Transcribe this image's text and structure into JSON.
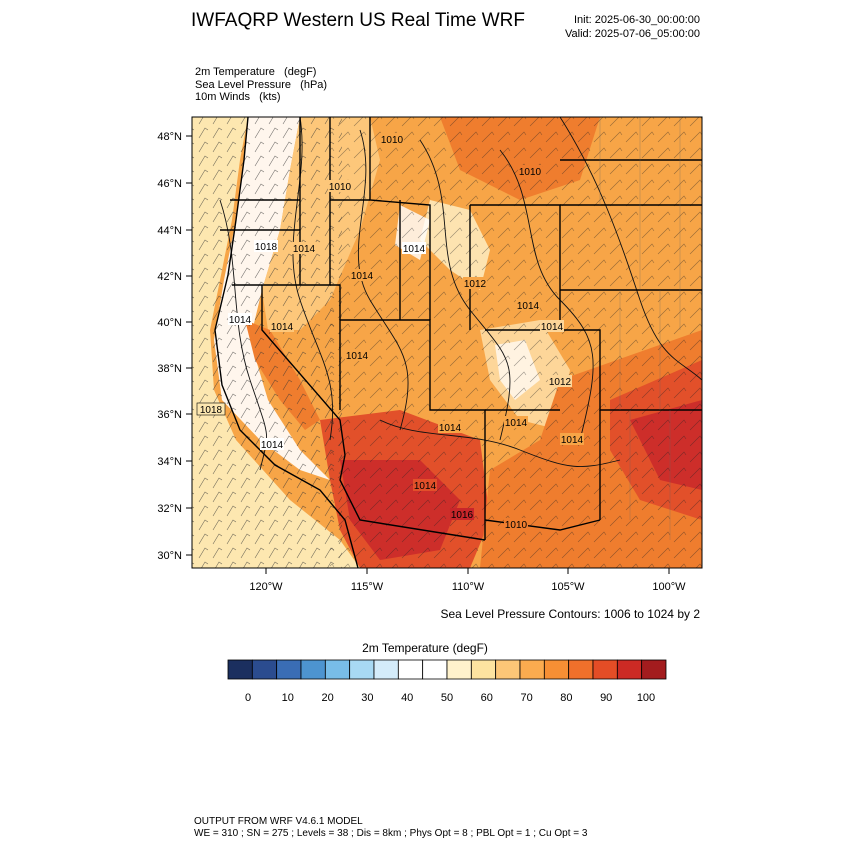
{
  "header": {
    "title": "IWFAQRP Western US Real Time WRF",
    "init": "Init: 2025-06-30_00:00:00",
    "valid": "Valid: 2025-07-06_05:00:00"
  },
  "fields": [
    "2m Temperature   (degF)",
    "Sea Level Pressure   (hPa)",
    "10m Winds   (kts)"
  ],
  "map": {
    "lat_labels": [
      "48°N",
      "46°N",
      "44°N",
      "42°N",
      "40°N",
      "38°N",
      "36°N",
      "34°N",
      "32°N",
      "30°N"
    ],
    "lon_labels": [
      "120°W",
      "115°W",
      "110°W",
      "105°W",
      "100°W"
    ],
    "pressure_labels": [
      "1010",
      "1010",
      "1018",
      "1014",
      "1014",
      "1014",
      "1014",
      "1012",
      "1010",
      "1014",
      "1014",
      "1014",
      "1014",
      "1018",
      "1014",
      "1014",
      "1014",
      "1012",
      "1014",
      "1014",
      "1010",
      "1016"
    ],
    "contour_note": "Sea Level Pressure Contours: 1006 to 1024 by 2",
    "colors": {
      "ocean": "#fde7b0",
      "cool_coast": "#ffffff",
      "mild": "#fdc77a",
      "warm": "#f7a547",
      "hot": "#ef7d2e",
      "hotter": "#e2502a",
      "hottest": "#c8262a"
    }
  },
  "colorbar": {
    "title": "2m Temperature  (degF)",
    "ticks": [
      "0",
      "10",
      "20",
      "30",
      "40",
      "50",
      "60",
      "70",
      "80",
      "90",
      "100"
    ],
    "colors": [
      "#1b2f5f",
      "#2b4c8f",
      "#3a6db5",
      "#4d94d0",
      "#78bde8",
      "#a8d9f3",
      "#d4ecfa",
      "#ffffff",
      "#ffffff",
      "#fff2cc",
      "#fde3a0",
      "#fcc677",
      "#fbab4f",
      "#f78f34",
      "#f0702b",
      "#e44d26",
      "#cc2a24",
      "#a31c1e"
    ]
  },
  "footer": {
    "line1": "OUTPUT FROM WRF V4.6.1 MODEL",
    "line2": "WE = 310 ; SN = 275 ; Levels = 38 ; Dis = 8km ; Phys Opt = 8 ; PBL Opt = 1 ; Cu Opt = 3"
  }
}
